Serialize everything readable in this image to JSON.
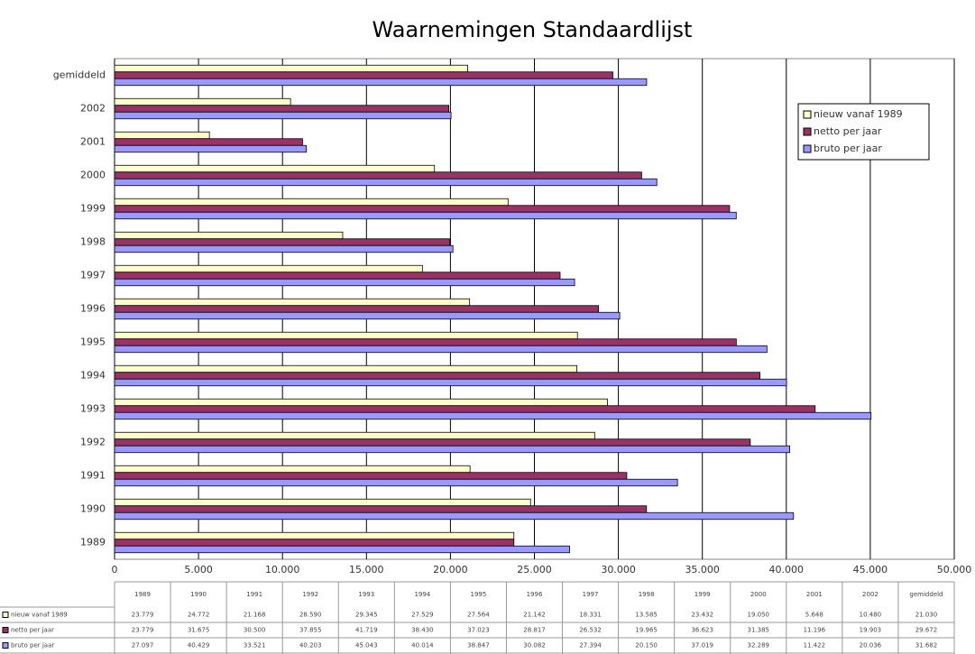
{
  "chart_data": {
    "type": "bar",
    "orientation": "horizontal",
    "title": "Waarnemingen Standaardlijst",
    "categories": [
      "1989",
      "1990",
      "1991",
      "1992",
      "1993",
      "1994",
      "1995",
      "1996",
      "1997",
      "1998",
      "1999",
      "2000",
      "2001",
      "2002",
      "gemiddeld"
    ],
    "series": [
      {
        "name": "nieuw vanaf 1989",
        "color": "#ffffcc",
        "values": [
          23779,
          24772,
          21168,
          28590,
          29345,
          27529,
          27564,
          21142,
          18331,
          13585,
          23432,
          19050,
          5648,
          10480,
          21030
        ],
        "value_labels": [
          "23.779",
          "24.772",
          "21.168",
          "28.590",
          "29.345",
          "27.529",
          "27.564",
          "21.142",
          "18.331",
          "13.585",
          "23.432",
          "19.050",
          "5.648",
          "10.480",
          "21.030"
        ]
      },
      {
        "name": "netto per jaar",
        "color": "#993366",
        "values": [
          23779,
          31675,
          30500,
          37855,
          41719,
          38430,
          37023,
          28817,
          26532,
          19965,
          36623,
          31385,
          11196,
          19903,
          29672
        ],
        "value_labels": [
          "23.779",
          "31.675",
          "30.500",
          "37.855",
          "41.719",
          "38.430",
          "37.023",
          "28.817",
          "26.532",
          "19.965",
          "36.623",
          "31.385",
          "11.196",
          "19.903",
          "29.672"
        ]
      },
      {
        "name": "bruto per jaar",
        "color": "#9999ff",
        "values": [
          27097,
          40429,
          33521,
          40203,
          45043,
          40014,
          38847,
          30082,
          27394,
          20150,
          37019,
          32289,
          11422,
          20036,
          31682
        ],
        "value_labels": [
          "27.097",
          "40.429",
          "33.521",
          "40.203",
          "45.043",
          "40.014",
          "38.847",
          "30.082",
          "27.394",
          "20.150",
          "37.019",
          "32.289",
          "11.422",
          "20.036",
          "31.682"
        ]
      }
    ],
    "xlim": [
      0,
      50000
    ],
    "xticks": [
      0,
      {
        "value": 5000,
        "label": "5.000"
      },
      {
        "value": 10000,
        "label": "10.000"
      },
      {
        "value": 15000,
        "label": "15.000"
      },
      {
        "value": 20000,
        "label": "20.000"
      },
      {
        "value": 25000,
        "label": "25.000"
      },
      {
        "value": 30000,
        "label": "30.000"
      },
      {
        "value": 35000,
        "label": "35.000"
      },
      {
        "value": 40000,
        "label": "40.000"
      },
      {
        "value": 45000,
        "label": "45.000"
      },
      {
        "value": 50000,
        "label": "50.000"
      }
    ],
    "grid": true,
    "legend": "top-right"
  }
}
